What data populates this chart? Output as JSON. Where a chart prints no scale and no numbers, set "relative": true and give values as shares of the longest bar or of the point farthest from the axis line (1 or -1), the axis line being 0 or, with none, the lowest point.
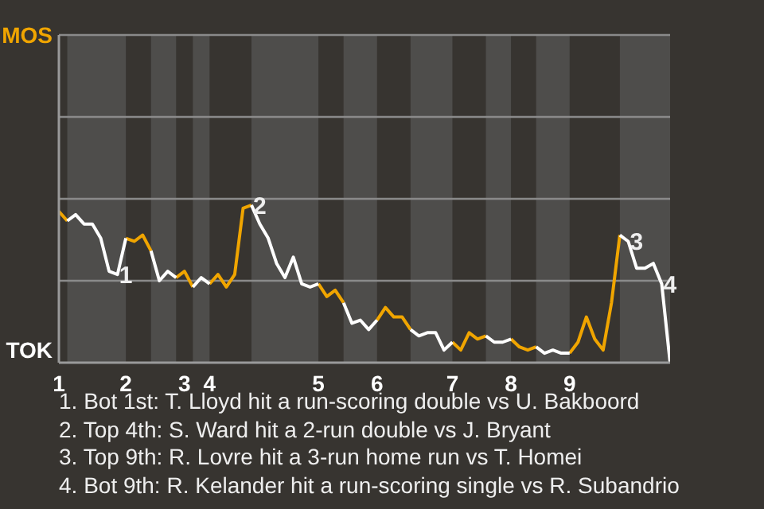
{
  "chart_data": {
    "type": "line",
    "relative": true,
    "categories": [
      "1",
      null,
      null,
      null,
      null,
      null,
      null,
      null,
      "2",
      null,
      null,
      null,
      null,
      null,
      null,
      "3",
      null,
      null,
      "4",
      null,
      null,
      null,
      null,
      null,
      null,
      null,
      null,
      null,
      null,
      null,
      null,
      "5",
      null,
      null,
      null,
      null,
      null,
      null,
      "6",
      null,
      null,
      null,
      null,
      null,
      null,
      null,
      null,
      "7",
      null,
      null,
      null,
      null,
      null,
      null,
      "8",
      null,
      null,
      null,
      null,
      null,
      null,
      "9",
      null,
      null,
      null,
      null,
      null,
      null,
      null,
      null,
      null,
      null,
      null,
      null
    ],
    "series": [
      {
        "name": "MOS",
        "color": "#f0a500",
        "values": [
          0.96,
          0.9,
          null,
          null,
          null,
          null,
          null,
          null,
          0.79,
          0.77,
          0.81,
          0.71,
          null,
          null,
          0.54,
          0.58,
          0.48,
          null,
          0.5,
          0.56,
          0.48,
          0.56,
          0.98,
          1,
          null,
          null,
          null,
          null,
          null,
          null,
          null,
          0.5,
          0.42,
          0.46,
          0.38,
          null,
          null,
          null,
          0.27,
          0.35,
          0.29,
          0.29,
          0.21,
          null,
          null,
          null,
          null,
          0.13,
          0.08,
          0.19,
          0.15,
          0.17,
          null,
          null,
          0.15,
          0.1,
          0.08,
          0.1,
          null,
          null,
          null,
          0.06,
          0.13,
          0.29,
          0.15,
          0.08,
          0.38,
          0.81,
          null,
          null,
          null,
          null,
          null,
          null
        ]
      },
      {
        "name": "TOK",
        "color": "#ffffff",
        "values": [
          null,
          0.9,
          0.94,
          0.88,
          0.88,
          0.79,
          0.58,
          0.56,
          0.79,
          null,
          null,
          0.71,
          0.52,
          0.58,
          0.54,
          null,
          0.48,
          0.54,
          0.5,
          null,
          null,
          null,
          null,
          1,
          0.88,
          0.79,
          0.63,
          0.54,
          0.67,
          0.5,
          0.48,
          0.5,
          null,
          null,
          0.38,
          0.25,
          0.27,
          0.21,
          0.27,
          null,
          null,
          null,
          0.21,
          0.17,
          0.19,
          0.19,
          0.08,
          0.13,
          null,
          null,
          null,
          0.17,
          0.13,
          0.13,
          0.15,
          null,
          null,
          0.1,
          0.06,
          0.08,
          0.06,
          0.06,
          null,
          null,
          null,
          null,
          null,
          0.81,
          0.77,
          0.6,
          0.6,
          0.63,
          0.5,
          0
        ]
      }
    ],
    "ref_lines": [
      {
        "axis": "y",
        "value": 0.52,
        "color": "#8a8a8a"
      },
      {
        "axis": "y",
        "value": 1.04,
        "color": "#8a8a8a"
      },
      {
        "axis": "y",
        "value": 1.56,
        "color": "#8a8a8a"
      },
      {
        "axis": "y",
        "value": 2.08,
        "color": "#8a8a8a"
      }
    ],
    "annotations": [
      {
        "text": "1",
        "y": 0.56
      },
      {
        "text": "2",
        "y": 1
      },
      {
        "text": "3",
        "y": 0.77
      },
      {
        "text": "4",
        "y": 0.5
      },
      "1. Bot 1st: T. Lloyd hit a run-scoring double vs U. Bakboord",
      "2. Top 4th: S. Ward hit a 2-run double vs J. Bryant",
      "3. Top 9th: R. Lovre hit a 3-run home run vs T. Homei",
      "4. Bot 9th: R. Kelander hit a run-scoring single vs R. Subandrio"
    ]
  }
}
